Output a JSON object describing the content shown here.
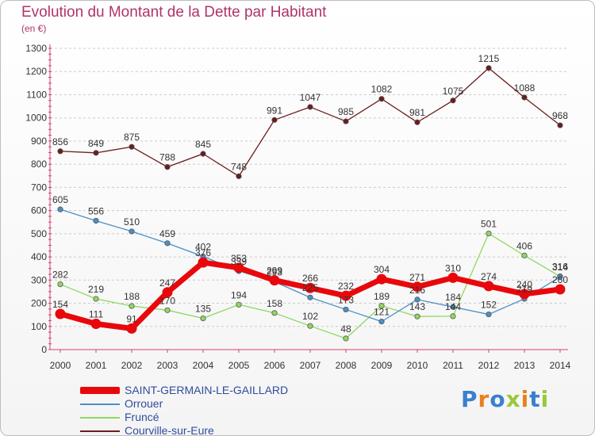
{
  "header": {
    "title": "Evolution du Montant de la Dette par Habitant",
    "subtitle": "(en €)"
  },
  "brand": "Proxiti",
  "colors": {
    "title": "#b0336a",
    "axis": "#d44070",
    "grid": "#cccccc",
    "legend_text": "#2f4d9c"
  },
  "chart_data": {
    "type": "line",
    "title": "Evolution du Montant de la Dette par Habitant",
    "subtitle": "(en €)",
    "xlabel": "",
    "ylabel": "",
    "ylim": [
      0,
      1300
    ],
    "yticks": [
      0,
      100,
      200,
      300,
      400,
      500,
      600,
      700,
      800,
      900,
      1000,
      1100,
      1200,
      1300
    ],
    "grid": "horizontal dashed",
    "legend_position": "bottom-left",
    "categories": [
      "2000",
      "2001",
      "2002",
      "2003",
      "2004",
      "2005",
      "2006",
      "2007",
      "2008",
      "2009",
      "2010",
      "2011",
      "2012",
      "2013",
      "2014"
    ],
    "series": [
      {
        "name": "SAINT-GERMAIN-LE-GAILLARD",
        "color": "#e8080c",
        "values": [
          154,
          111,
          91,
          247,
          376,
          353,
          299,
          266,
          232,
          304,
          271,
          310,
          274,
          240,
          260
        ]
      },
      {
        "name": "Orrouer",
        "color": "#4a90c8",
        "values": [
          605,
          556,
          510,
          459,
          402,
          339,
          293,
          225,
          173,
          121,
          216,
          184,
          152,
          219,
          314
        ]
      },
      {
        "name": "Fruncé",
        "color": "#90d860",
        "values": [
          282,
          219,
          188,
          170,
          135,
          194,
          158,
          102,
          48,
          189,
          143,
          144,
          501,
          406,
          316
        ]
      },
      {
        "name": "Courville-sur-Eure",
        "color": "#6b1c1c",
        "values": [
          856,
          849,
          875,
          788,
          845,
          748,
          991,
          1047,
          985,
          1082,
          981,
          1075,
          1215,
          1088,
          968
        ]
      }
    ]
  }
}
